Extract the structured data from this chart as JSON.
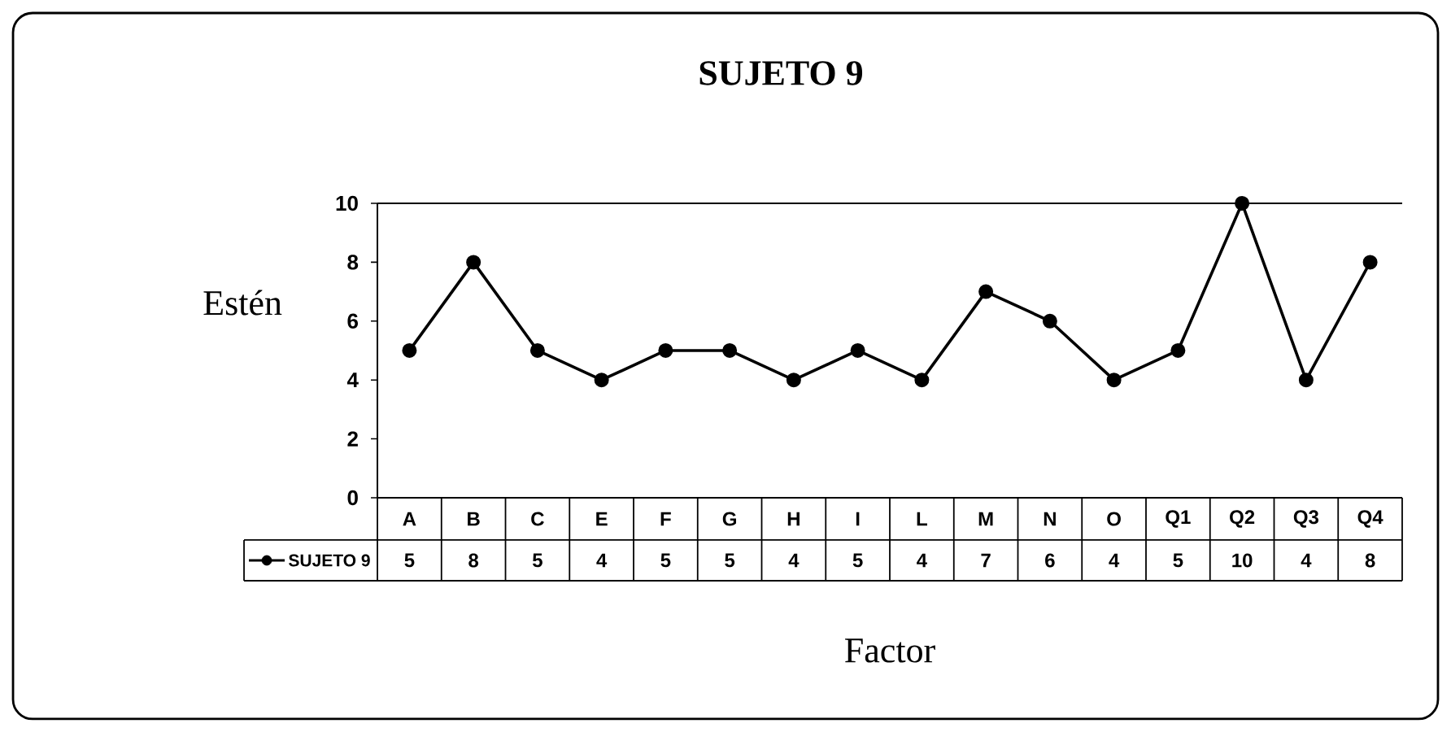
{
  "chart_data": {
    "type": "line",
    "title": "SUJETO 9",
    "xlabel": "Factor",
    "ylabel": "Estén",
    "categories": [
      "A",
      "B",
      "C",
      "E",
      "F",
      "G",
      "H",
      "I",
      "L",
      "M",
      "N",
      "O",
      "Q1",
      "Q2",
      "Q3",
      "Q4"
    ],
    "series": [
      {
        "name": "SUJETO 9",
        "color": "#000000",
        "values": [
          5,
          8,
          5,
          4,
          5,
          5,
          4,
          5,
          4,
          7,
          6,
          4,
          5,
          10,
          4,
          8
        ]
      }
    ],
    "ylim": [
      0,
      10
    ],
    "yticks": [
      0,
      2,
      4,
      6,
      8,
      10
    ],
    "legend": "bottom left",
    "marker": "circle",
    "line_style": "solid",
    "data_labels": true
  }
}
